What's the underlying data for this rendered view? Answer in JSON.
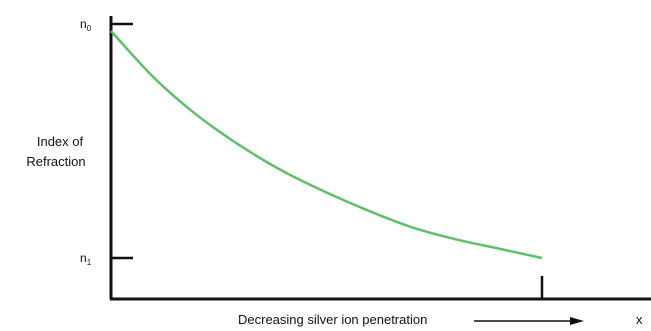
{
  "chart_data": {
    "type": "line",
    "title": "",
    "ylabel_lines": [
      "Index of",
      "Refraction"
    ],
    "xlabel": "Decreasing silver ion penetration",
    "x_axis_end_label": "x",
    "y_ticks": [
      {
        "value": 1.0,
        "base": "n",
        "sub": "0"
      },
      {
        "value": 0.0,
        "base": "n",
        "sub": "1"
      }
    ],
    "ylim": [
      -0.16,
      1.05
    ],
    "xlim": [
      0,
      1
    ],
    "x_marker": 1.0,
    "series": [
      {
        "x": [
          0,
          0.1,
          0.2,
          0.3,
          0.4,
          0.5,
          0.6,
          0.7,
          0.8,
          0.9,
          1.0
        ],
        "y": [
          0.97,
          0.77,
          0.61,
          0.48,
          0.37,
          0.28,
          0.2,
          0.13,
          0.08,
          0.04,
          0.0
        ],
        "color": "#5fbf6a"
      }
    ],
    "grid": false,
    "legend": "none"
  }
}
